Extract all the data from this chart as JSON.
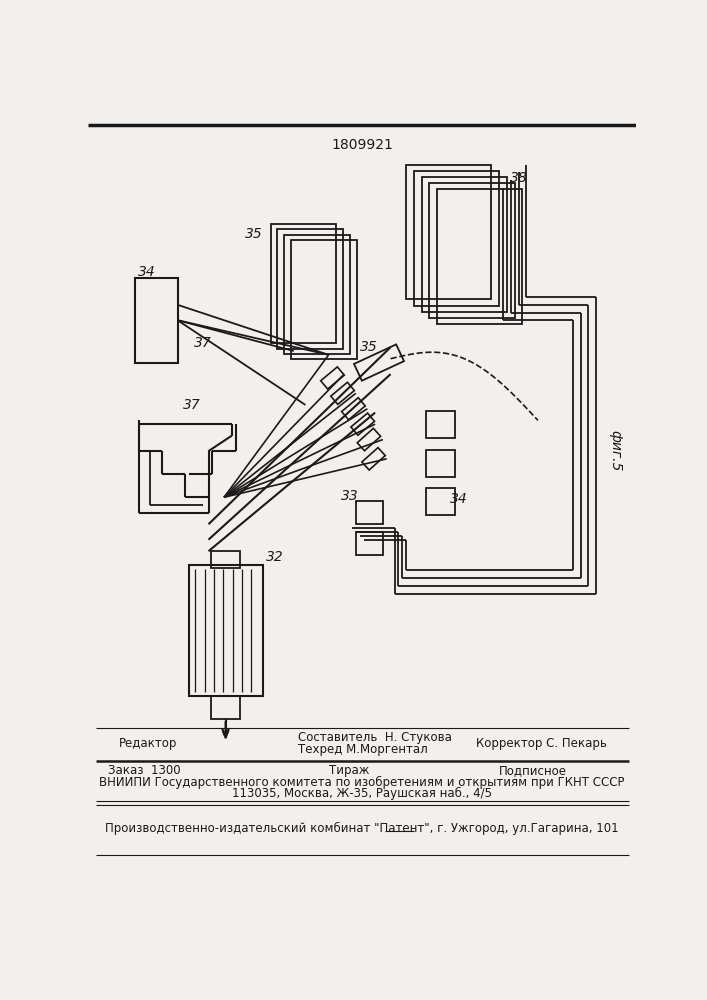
{
  "patent_number": "1809921",
  "fig_label": "фиг.5",
  "bg_color": "#f2f0ec",
  "line_color": "#1a1a1a",
  "footer_line1_left": "Редактор",
  "footer_comp": "Составитель  Н. Стукова",
  "footer_tech": "Техред М.Моргентал",
  "footer_corr": "Корректор С. Пекарь",
  "footer_order": "Заказ  1300",
  "footer_tirazh": "Тираж",
  "footer_podp": "Подписное",
  "footer_line3": "ВНИИПИ Государственного комитета по изобретениям и открытиям при ГКНТ СССР",
  "footer_line4": "113035, Москва, Ж-35, Раушская наб., 4/5",
  "footer_line5": "Производственно-издательский комбинат \"Патент\", г. Ужгород, ул.Гагарина, 101"
}
